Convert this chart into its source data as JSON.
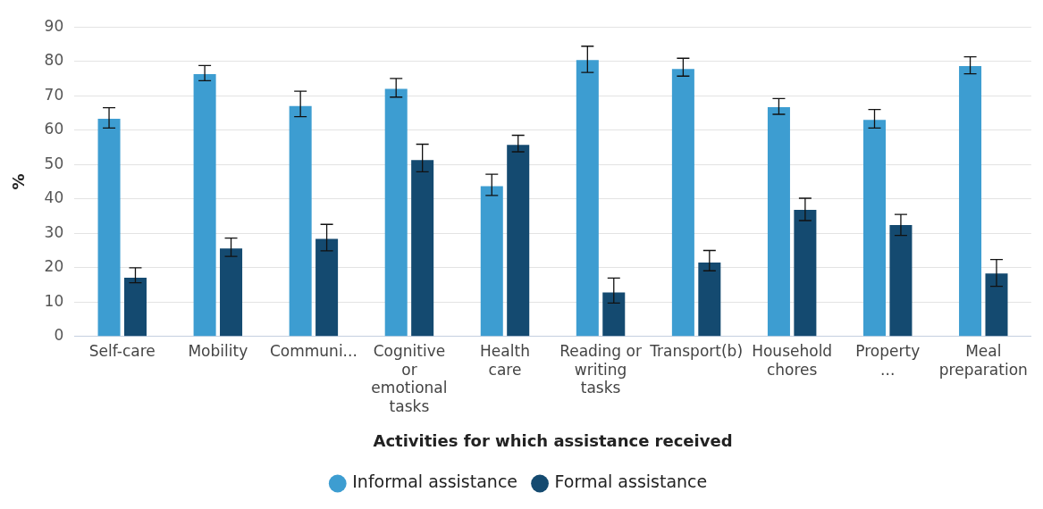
{
  "chart_data": {
    "type": "bar",
    "xlabel": "Activities for which assistance received",
    "ylabel": "%",
    "categories": [
      "Self-care",
      "Mobility",
      "Communi...",
      "Cognitive or emotional tasks",
      "Health care",
      "Reading or writing tasks",
      "Transport(b)",
      "Household chores",
      "Property ...",
      "Meal preparation"
    ],
    "series": [
      {
        "name": "Informal assistance",
        "color": "#3d9dd1",
        "values": [
          63.3,
          76.3,
          67,
          72,
          43.7,
          80.4,
          77.8,
          66.7,
          63,
          78.6
        ],
        "errors": [
          [
            60.6,
            66.5
          ],
          [
            74.4,
            78.8
          ],
          [
            63.9,
            71.3
          ],
          [
            69.6,
            75
          ],
          [
            41,
            47.2
          ],
          [
            76.8,
            84.4
          ],
          [
            75.7,
            80.9
          ],
          [
            64.6,
            69.2
          ],
          [
            60.6,
            66
          ],
          [
            76.4,
            81.3
          ]
        ]
      },
      {
        "name": "Formal assistance",
        "color": "#144a70",
        "values": [
          17.1,
          25.6,
          28.4,
          51.3,
          55.7,
          12.8,
          21.5,
          36.8,
          32.4,
          18.3
        ],
        "errors": [
          [
            15.6,
            20
          ],
          [
            23.3,
            28.6
          ],
          [
            24.9,
            32.6
          ],
          [
            47.9,
            55.9
          ],
          [
            53.7,
            58.5
          ],
          [
            9.7,
            17
          ],
          [
            19.1,
            25
          ],
          [
            33.7,
            40.2
          ],
          [
            29.4,
            35.5
          ],
          [
            14.6,
            22.4
          ]
        ]
      }
    ],
    "ylim": [
      0,
      90
    ],
    "yticks": [
      0,
      10,
      20,
      30,
      40,
      50,
      60,
      70,
      80,
      90
    ],
    "grid": "y",
    "legend": "bottom"
  }
}
